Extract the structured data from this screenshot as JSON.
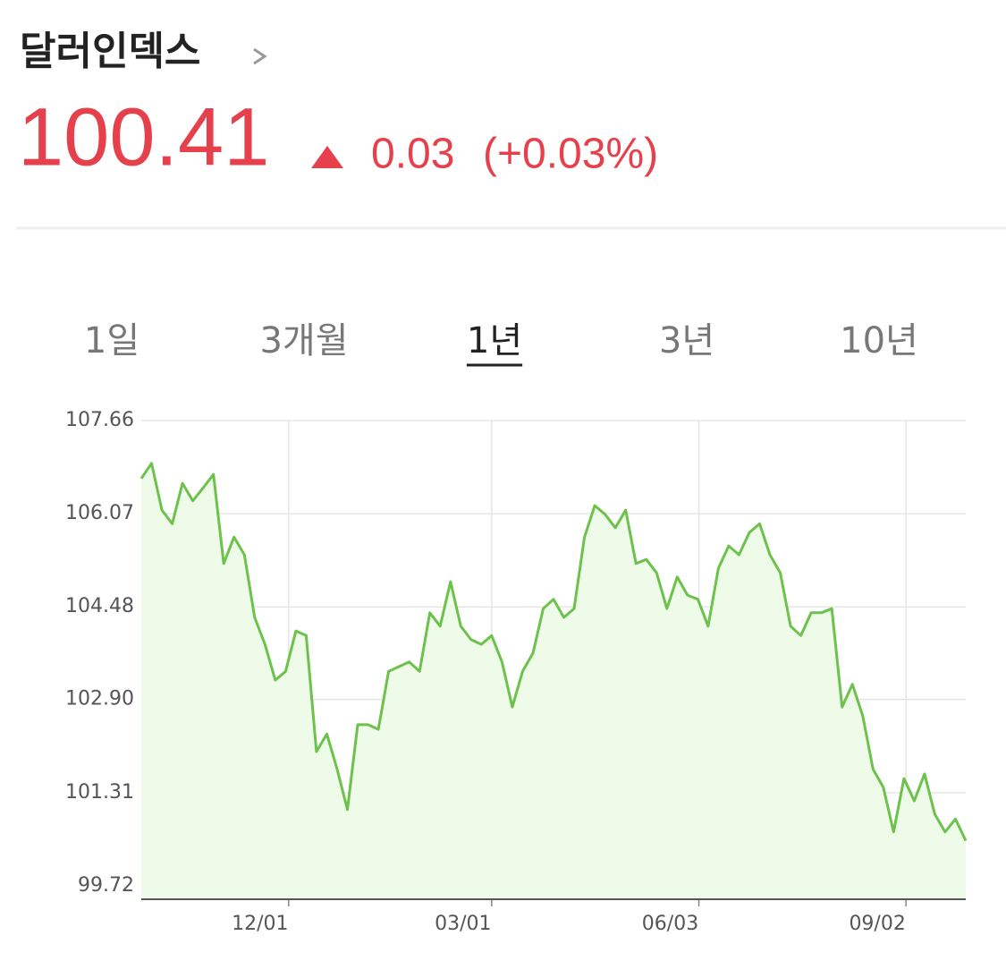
{
  "header": {
    "title": "달러인덱스",
    "price": "100.41",
    "change": "0.03",
    "change_percent": "(+0.03%)"
  },
  "tabs": [
    "1일",
    "3개월",
    "1년",
    "3년",
    "10년"
  ],
  "selected_tab": 2,
  "chart_data": {
    "type": "area",
    "color": "#6cc24a",
    "fill": "#eefbe9",
    "values": [
      106.67,
      106.93,
      106.13,
      105.9,
      106.59,
      106.29,
      106.51,
      106.74,
      105.22,
      105.67,
      105.37,
      104.3,
      103.84,
      103.23,
      103.38,
      104.07,
      103.99,
      102.01,
      102.31,
      101.71,
      101.02,
      102.47,
      102.47,
      102.39,
      103.38,
      103.46,
      103.54,
      103.38,
      104.38,
      104.15,
      104.91,
      104.15,
      103.92,
      103.84,
      103.99,
      103.54,
      102.77,
      103.38,
      103.69,
      104.45,
      104.61,
      104.3,
      104.45,
      105.67,
      106.21,
      106.06,
      105.83,
      106.13,
      105.22,
      105.29,
      105.06,
      104.45,
      104.99,
      104.68,
      104.61,
      104.15,
      105.14,
      105.52,
      105.37,
      105.75,
      105.9,
      105.37,
      105.06,
      104.15,
      103.99,
      104.38,
      104.38,
      104.45,
      102.77,
      103.16,
      102.62,
      101.71,
      101.4,
      100.64,
      101.55,
      101.17,
      101.63,
      100.94,
      100.64,
      100.86,
      100.49
    ],
    "xlim": [
      0,
      80
    ],
    "xticks": [
      {
        "value": 14.3,
        "label": "12/01"
      },
      {
        "value": 34.0,
        "label": "03/01"
      },
      {
        "value": 54.1,
        "label": "06/03"
      },
      {
        "value": 74.2,
        "label": "09/02"
      }
    ],
    "ylim": [
      99.49,
      107.66
    ],
    "yticks": [
      107.66,
      106.07,
      104.48,
      {
        "value": 102.9,
        "label": "102.90"
      },
      101.31,
      99.72
    ],
    "grid": true
  }
}
